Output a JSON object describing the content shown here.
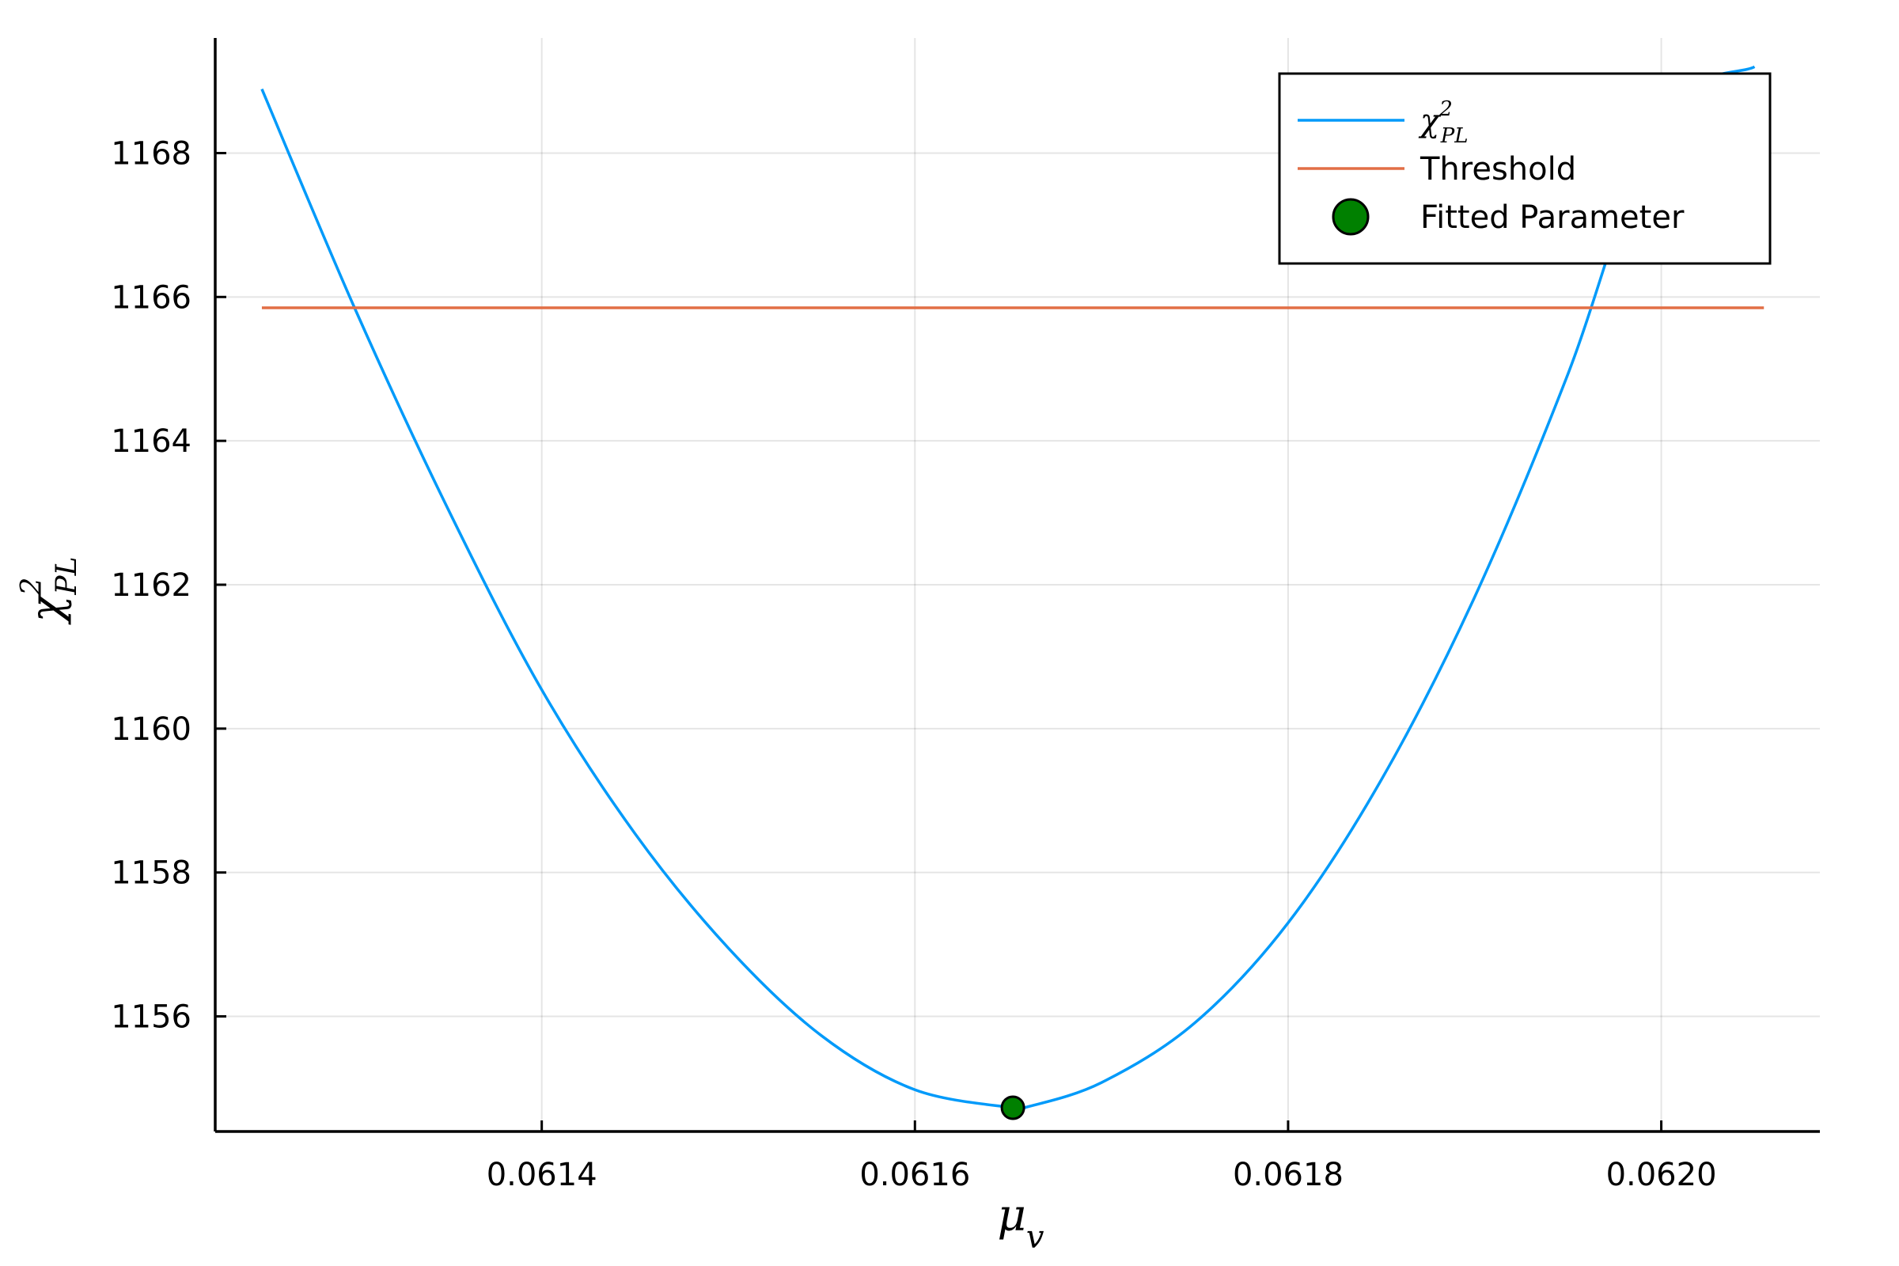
{
  "chart_data": {
    "type": "line",
    "xlabel": {
      "base": "μ",
      "sub": "v"
    },
    "ylabel": {
      "base": "χ",
      "sup": "2",
      "sub": "PL"
    },
    "xlim": [
      0.061225,
      0.062085
    ],
    "ylim": [
      1154.4,
      1169.6
    ],
    "xticks": [
      0.0614,
      0.0616,
      0.0618,
      0.062
    ],
    "xtick_labels": [
      "0.0614",
      "0.0616",
      "0.0618",
      "0.0620"
    ],
    "yticks": [
      1156,
      1158,
      1160,
      1162,
      1164,
      1166,
      1168
    ],
    "ytick_labels": [
      "1156",
      "1158",
      "1160",
      "1162",
      "1164",
      "1166",
      "1168"
    ],
    "grid": true,
    "legend_position": "top-right",
    "series": [
      {
        "name": "χ²_PL",
        "legend": {
          "base": "χ",
          "sup": "2",
          "sub": "PL"
        },
        "kind": "line",
        "color": "#009AFA",
        "x": [
          0.06125,
          0.0613,
          0.06135,
          0.0614,
          0.06145,
          0.0615,
          0.06155,
          0.0616,
          0.0616525,
          0.06166,
          0.0617,
          0.06175,
          0.0618,
          0.06185,
          0.0619,
          0.06195,
          0.062,
          0.06205
        ],
        "y": [
          1168.89,
          1165.83,
          1163.04,
          1160.54,
          1158.54,
          1156.95,
          1155.73,
          1154.98,
          1154.73,
          1154.74,
          1155.08,
          1155.91,
          1157.3,
          1159.29,
          1161.83,
          1164.93,
          1168.5,
          1169.2
        ]
      },
      {
        "name": "Threshold",
        "kind": "hline",
        "color": "#E26F46",
        "x": [
          0.06125,
          0.062055
        ],
        "y": [
          1165.85,
          1165.85
        ]
      },
      {
        "name": "Fitted Parameter",
        "kind": "point",
        "color": "#008000",
        "x": [
          0.0616525
        ],
        "y": [
          1154.73
        ]
      }
    ]
  }
}
